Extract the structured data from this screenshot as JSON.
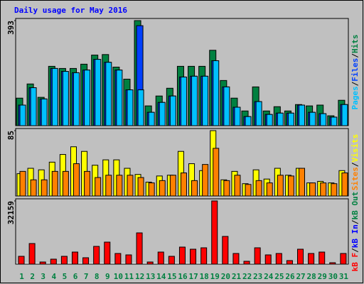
{
  "chart_data": [
    {
      "type": "bar",
      "title": "Daily usage for May 2016",
      "legend_separator": "/",
      "ylim": [
        0,
        393
      ],
      "yticks": [
        393
      ],
      "series": [
        {
          "name": "Hits",
          "color": "#008040",
          "values": [
            103,
            156,
            106,
            222,
            214,
            214,
            230,
            264,
            266,
            219,
            174,
            393,
            74,
            111,
            140,
            222,
            222,
            222,
            282,
            169,
            103,
            55,
            145,
            55,
            71,
            55,
            79,
            74,
            77,
            37,
            95
          ]
        },
        {
          "name": "Files",
          "color": "#0040ff",
          "values": [
            77,
            142,
            100,
            214,
            203,
            198,
            208,
            248,
            237,
            208,
            134,
            374,
            50,
            87,
            111,
            182,
            185,
            185,
            243,
            145,
            69,
            34,
            90,
            42,
            47,
            47,
            77,
            50,
            45,
            32,
            79
          ]
        },
        {
          "name": "Pages",
          "color": "#00c0ff",
          "values": [
            77,
            142,
            100,
            214,
            203,
            198,
            208,
            248,
            237,
            208,
            134,
            134,
            50,
            87,
            111,
            182,
            185,
            185,
            243,
            145,
            69,
            34,
            90,
            42,
            47,
            47,
            77,
            50,
            45,
            32,
            79
          ]
        }
      ]
    },
    {
      "type": "bar",
      "ylim": [
        0,
        85
      ],
      "yticks": [
        85
      ],
      "series": [
        {
          "name": "Visits",
          "color": "#ffff00",
          "values": [
            29,
            36,
            34,
            44,
            54,
            64,
            58,
            40,
            47,
            47,
            36,
            28,
            18,
            26,
            27,
            58,
            42,
            33,
            85,
            21,
            32,
            16,
            34,
            22,
            36,
            27,
            36,
            17,
            19,
            17,
            33
          ]
        },
        {
          "name": "Sites",
          "color": "#ff8000",
          "values": [
            32,
            21,
            21,
            32,
            32,
            42,
            32,
            24,
            27,
            27,
            27,
            24,
            17,
            20,
            27,
            30,
            20,
            41,
            62,
            20,
            27,
            15,
            20,
            17,
            27,
            26,
            36,
            17,
            17,
            16,
            30
          ]
        }
      ]
    },
    {
      "type": "bar",
      "ylim": [
        0,
        32159
      ],
      "yticks": [
        32159
      ],
      "categories": [
        "1",
        "2",
        "3",
        "4",
        "5",
        "6",
        "7",
        "8",
        "9",
        "10",
        "11",
        "12",
        "13",
        "14",
        "15",
        "16",
        "17",
        "18",
        "19",
        "20",
        "21",
        "22",
        "23",
        "24",
        "25",
        "26",
        "27",
        "28",
        "29",
        "30",
        "31"
      ],
      "category_colors": [
        "#008040",
        "#008040",
        "#008040",
        "#008040",
        "#008040",
        "#008040",
        "#008040",
        "#008040",
        "#008040",
        "#008040",
        "#008040",
        "#008040",
        "#008040",
        "#008040",
        "#008040",
        "#008040",
        "#008040",
        "#008040",
        "#008040",
        "#008040",
        "#008040",
        "#008040",
        "#008040",
        "#008040",
        "#008040",
        "#008040",
        "#008040",
        "#008040",
        "#008040",
        "#008040",
        "#008040"
      ],
      "series": [
        {
          "name": "kB Out",
          "color": "#008040",
          "values": [
            0,
            0,
            0,
            0,
            0,
            0,
            0,
            0,
            0,
            0,
            0,
            0,
            0,
            0,
            0,
            0,
            0,
            0,
            0,
            0,
            0,
            0,
            0,
            0,
            0,
            0,
            0,
            0,
            0,
            0,
            0
          ]
        },
        {
          "name": "kB In",
          "color": "#0000ff",
          "values": [
            0,
            0,
            0,
            0,
            0,
            0,
            0,
            0,
            0,
            0,
            0,
            0,
            0,
            0,
            0,
            0,
            0,
            0,
            0,
            0,
            0,
            0,
            0,
            0,
            0,
            0,
            0,
            0,
            0,
            0,
            0
          ]
        },
        {
          "name": "kB F",
          "color": "#ff0000",
          "values": [
            3975,
            10480,
            1080,
            2530,
            3975,
            6140,
            3250,
            9030,
            11200,
            5420,
            4700,
            15900,
            1080,
            6140,
            3975,
            8670,
            7590,
            8310,
            32159,
            14100,
            5420,
            1445,
            8310,
            4700,
            5420,
            1805,
            7590,
            5420,
            6140,
            720,
            5420
          ]
        }
      ]
    }
  ]
}
